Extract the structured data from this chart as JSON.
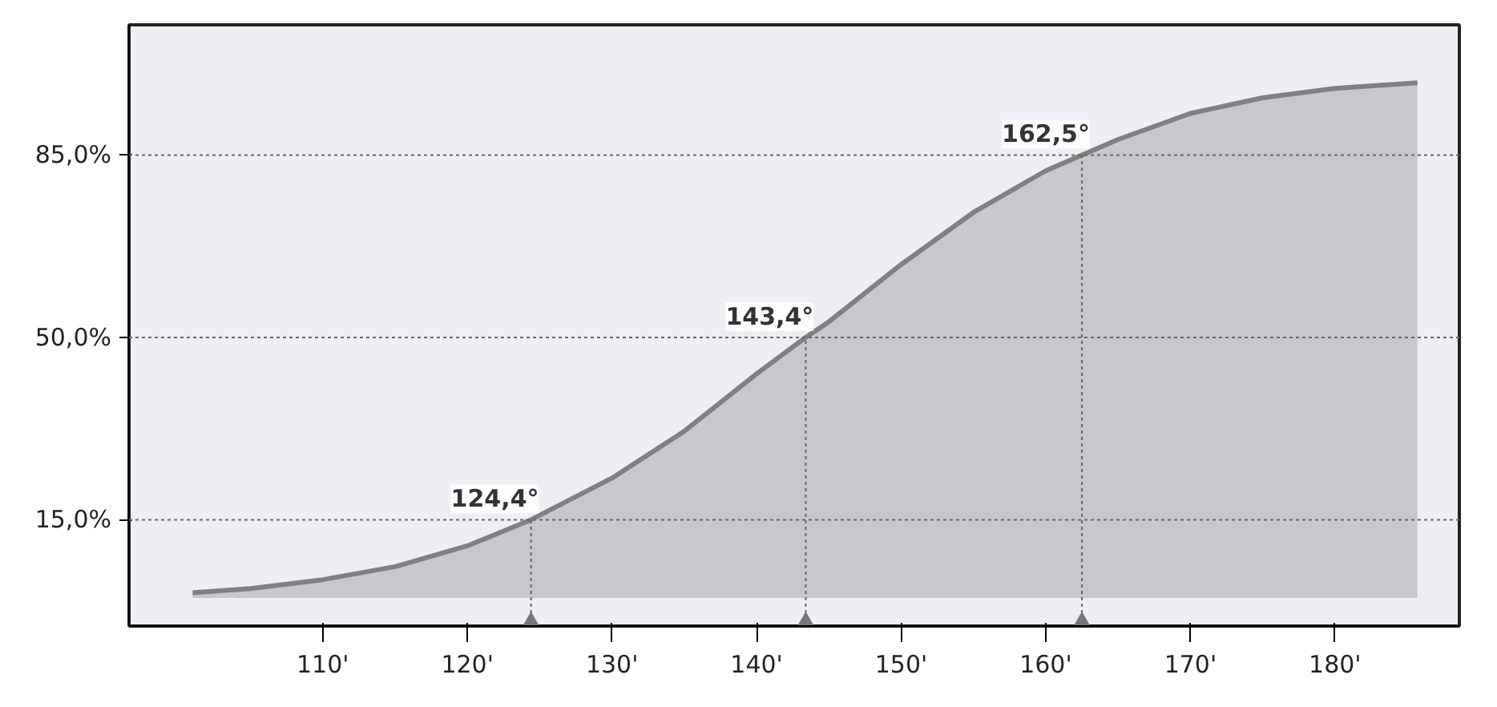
{
  "chart_data": {
    "type": "area",
    "x": [
      101,
      105,
      110,
      115,
      120,
      124.4,
      130,
      135,
      140,
      143.4,
      145,
      150,
      155,
      160,
      162.5,
      165,
      170,
      175,
      180,
      185.7
    ],
    "series": [
      {
        "color": "#808080",
        "values": [
          1.0,
          1.8,
          3.5,
          6.0,
          10,
          15,
          23,
          32,
          43,
          50,
          53,
          64,
          74,
          82,
          85,
          88,
          93,
          96,
          97.8,
          98.9
        ]
      }
    ],
    "xlim": [
      96.6,
      188.6
    ],
    "ylim": [
      -5.4,
      110
    ],
    "xticks": [
      {
        "value": 110,
        "label": "110'"
      },
      {
        "value": 120,
        "label": "120'"
      },
      {
        "value": 130,
        "label": "130'"
      },
      {
        "value": 140,
        "label": "140'"
      },
      {
        "value": 150,
        "label": "150'"
      },
      {
        "value": 160,
        "label": "160'"
      },
      {
        "value": 170,
        "label": "170'"
      },
      {
        "value": 180,
        "label": "180'"
      }
    ],
    "yticks": [
      {
        "value": 15,
        "label": "15,0%"
      },
      {
        "value": 50,
        "label": "50,0%"
      },
      {
        "value": 85,
        "label": "85,0%"
      }
    ],
    "annotations": [
      {
        "text": "124,4°",
        "x": 124.4,
        "y": 15
      },
      {
        "text": "143,4°",
        "x": 143.4,
        "y": 50
      },
      {
        "text": "162,5°",
        "x": 162.5,
        "y": 85
      }
    ],
    "ref_lines": [
      {
        "axis": "y",
        "value": 15,
        "line_style": "dotted"
      },
      {
        "axis": "y",
        "value": 50,
        "line_style": "dotted"
      },
      {
        "axis": "y",
        "value": 85,
        "line_style": "dotted"
      }
    ],
    "grid": false,
    "line_style": "solid"
  }
}
